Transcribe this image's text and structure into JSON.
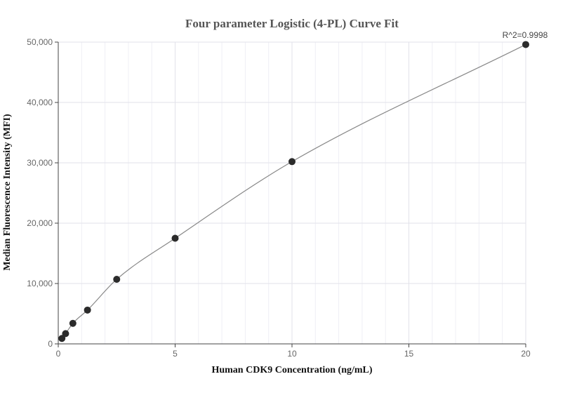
{
  "chart_data": {
    "type": "scatter",
    "title": "Four parameter Logistic (4-PL) Curve Fit",
    "xlabel": "Human CDK9 Concentration (ng/mL)",
    "ylabel": "Median Fluorescence Intensity (MFI)",
    "xlim": [
      0,
      20
    ],
    "ylim": [
      0,
      50000
    ],
    "x_ticks": [
      0,
      5,
      10,
      15,
      20
    ],
    "x_tick_labels": [
      "0",
      "5",
      "10",
      "15",
      "20"
    ],
    "y_ticks": [
      0,
      10000,
      20000,
      30000,
      40000,
      50000
    ],
    "y_tick_labels": [
      "0",
      "10,000",
      "20,000",
      "30,000",
      "40,000",
      "50,000"
    ],
    "grid": true,
    "annotation": "R^2=0.9998",
    "series": [
      {
        "points": [
          {
            "x": 0.156,
            "y": 900
          },
          {
            "x": 0.313,
            "y": 1700
          },
          {
            "x": 0.625,
            "y": 3400
          },
          {
            "x": 1.25,
            "y": 5600
          },
          {
            "x": 2.5,
            "y": 10700
          },
          {
            "x": 5,
            "y": 17500
          },
          {
            "x": 10,
            "y": 30200
          },
          {
            "x": 20,
            "y": 49600
          }
        ],
        "marker_color": "#2b2b2b",
        "line_color": "#888888"
      }
    ]
  }
}
